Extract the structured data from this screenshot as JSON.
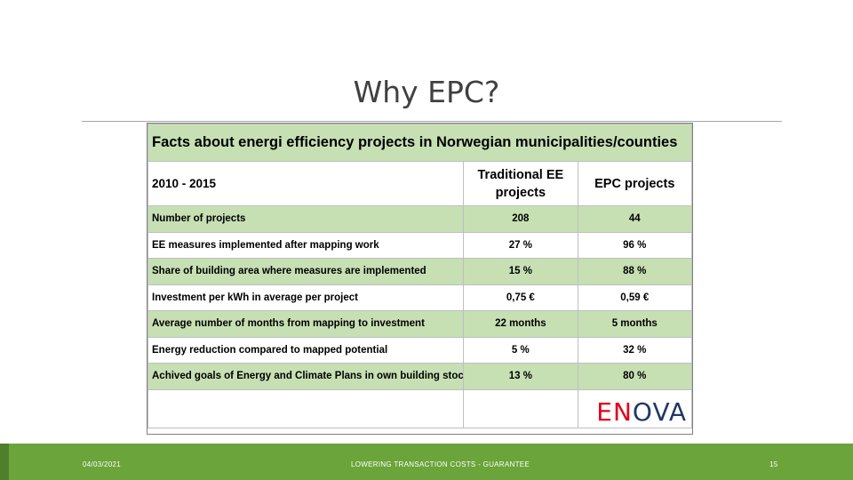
{
  "slide": {
    "title": "Why EPC?",
    "footer": {
      "date": "04/03/2021",
      "center": "LOWERING TRANSACTION COSTS - GUARANTEE",
      "page": "15"
    }
  },
  "table": {
    "title": "Facts about energi efficiency projects in Norwegian municipalities/counties",
    "period": "2010 - 2015",
    "columns": [
      "Traditional EE projects",
      "EPC projects"
    ],
    "rows": [
      {
        "label": "Number of projects",
        "traditional": "208",
        "epc": "44",
        "shaded": true
      },
      {
        "label": "EE measures implemented after mapping work",
        "traditional": "27 %",
        "epc": "96 %",
        "shaded": false
      },
      {
        "label": "Share of building area where measures are implemented",
        "traditional": "15 %",
        "epc": "88 %",
        "shaded": true
      },
      {
        "label": "Investment per kWh in average per project",
        "traditional": "0,75 €",
        "epc": "0,59 €",
        "shaded": false
      },
      {
        "label": "Average number of months from mapping to investment",
        "traditional": "22 months",
        "epc": "5 months",
        "shaded": true
      },
      {
        "label": "Energy reduction compared to mapped potential",
        "traditional": "5 %",
        "epc": "32 %",
        "shaded": false
      },
      {
        "label": "Achived goals of Energy and Climate Plans in own building stock",
        "traditional": "13 %",
        "epc": "80 %",
        "shaded": true
      }
    ]
  },
  "logo": {
    "part1": "EN",
    "part2": "OVA",
    "colors": {
      "part1": "#e3001b",
      "part2": "#1f3864"
    }
  },
  "colors": {
    "table_shade": "#c6e0b4",
    "footer_bar": "#6ba43a"
  }
}
